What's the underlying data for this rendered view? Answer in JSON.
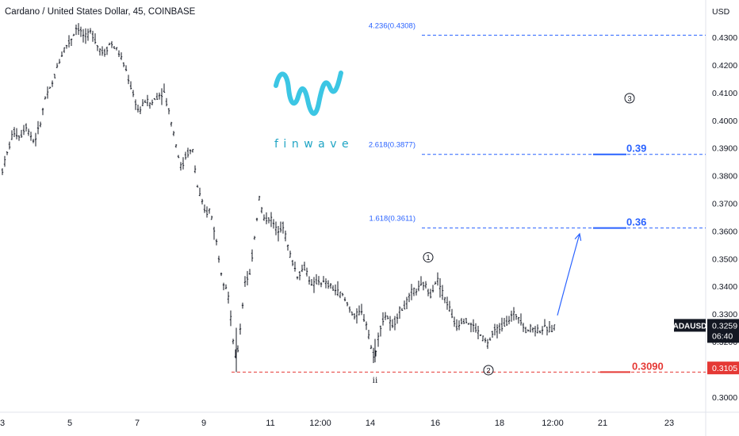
{
  "header": {
    "title": "Cardano / United States Dollar, 45, COINBASE"
  },
  "logo": {
    "text": "finwave",
    "color": "#1fa4c4"
  },
  "chart_data": {
    "type": "candlestick",
    "symbol": "ADAUSD",
    "currency": "USD",
    "ylim": [
      0.2945,
      0.4435
    ],
    "y_ticks": [
      "0.3000",
      "0.3100",
      "0.3200",
      "0.3300",
      "0.3400",
      "0.3500",
      "0.3600",
      "0.3700",
      "0.3800",
      "0.3900",
      "0.4000",
      "0.4100",
      "0.4200",
      "0.4300"
    ],
    "x_ticks": [
      "3",
      "5",
      "7",
      "9",
      "11",
      "12:00",
      "14",
      "16",
      "18",
      "12:00",
      "21",
      "23"
    ],
    "x_tick_index": [
      0,
      85,
      170,
      254,
      338,
      401,
      464,
      546,
      627,
      694,
      757,
      841
    ],
    "candle_count": 240,
    "anchor_points": [
      [
        0,
        0.382
      ],
      [
        6,
        0.388
      ],
      [
        14,
        0.396
      ],
      [
        22,
        0.394
      ],
      [
        30,
        0.398
      ],
      [
        40,
        0.392
      ],
      [
        48,
        0.399
      ],
      [
        54,
        0.408
      ],
      [
        62,
        0.412
      ],
      [
        70,
        0.42
      ],
      [
        78,
        0.426
      ],
      [
        86,
        0.429
      ],
      [
        94,
        0.434
      ],
      [
        104,
        0.43
      ],
      [
        112,
        0.432
      ],
      [
        120,
        0.427
      ],
      [
        128,
        0.424
      ],
      [
        136,
        0.428
      ],
      [
        146,
        0.425
      ],
      [
        156,
        0.418
      ],
      [
        164,
        0.41
      ],
      [
        172,
        0.403
      ],
      [
        180,
        0.407
      ],
      [
        188,
        0.406
      ],
      [
        196,
        0.409
      ],
      [
        204,
        0.41
      ],
      [
        212,
        0.401
      ],
      [
        220,
        0.39
      ],
      [
        226,
        0.382
      ],
      [
        232,
        0.388
      ],
      [
        240,
        0.389
      ],
      [
        246,
        0.376
      ],
      [
        252,
        0.37
      ],
      [
        256,
        0.366
      ],
      [
        262,
        0.368
      ],
      [
        270,
        0.356
      ],
      [
        278,
        0.342
      ],
      [
        284,
        0.339
      ],
      [
        290,
        0.323
      ],
      [
        295,
        0.3118
      ],
      [
        300,
        0.325
      ],
      [
        306,
        0.342
      ],
      [
        312,
        0.344
      ],
      [
        318,
        0.358
      ],
      [
        324,
        0.372
      ],
      [
        330,
        0.364
      ],
      [
        338,
        0.365
      ],
      [
        346,
        0.36
      ],
      [
        354,
        0.362
      ],
      [
        362,
        0.352
      ],
      [
        372,
        0.344
      ],
      [
        382,
        0.347
      ],
      [
        390,
        0.34
      ],
      [
        398,
        0.342
      ],
      [
        408,
        0.341
      ],
      [
        418,
        0.339
      ],
      [
        428,
        0.337
      ],
      [
        436,
        0.333
      ],
      [
        444,
        0.329
      ],
      [
        452,
        0.331
      ],
      [
        460,
        0.326
      ],
      [
        466,
        0.316
      ],
      [
        470,
        0.3145
      ],
      [
        476,
        0.325
      ],
      [
        484,
        0.33
      ],
      [
        492,
        0.325
      ],
      [
        500,
        0.331
      ],
      [
        508,
        0.333
      ],
      [
        516,
        0.338
      ],
      [
        524,
        0.339
      ],
      [
        532,
        0.341
      ],
      [
        540,
        0.337
      ],
      [
        548,
        0.343
      ],
      [
        556,
        0.337
      ],
      [
        564,
        0.332
      ],
      [
        572,
        0.325
      ],
      [
        580,
        0.328
      ],
      [
        588,
        0.327
      ],
      [
        596,
        0.325
      ],
      [
        604,
        0.322
      ],
      [
        612,
        0.319
      ],
      [
        620,
        0.324
      ],
      [
        628,
        0.325
      ],
      [
        636,
        0.327
      ],
      [
        644,
        0.33
      ],
      [
        652,
        0.329
      ],
      [
        660,
        0.324
      ],
      [
        668,
        0.325
      ],
      [
        676,
        0.324
      ],
      [
        684,
        0.325
      ],
      [
        692,
        0.324
      ],
      [
        698,
        0.3259
      ]
    ],
    "fib_levels": [
      {
        "label": "4.236(0.4308)",
        "value": 0.4308
      },
      {
        "label": "2.618(0.3877)",
        "value": 0.3877
      },
      {
        "label": "1.618(0.3611)",
        "value": 0.3611
      }
    ],
    "targets": [
      {
        "label": "0.39",
        "value": 0.3877,
        "color": "#2962ff"
      },
      {
        "label": "0.36",
        "value": 0.3611,
        "color": "#2962ff"
      },
      {
        "label": "0.3090",
        "value": 0.309,
        "color": "#e53935"
      }
    ],
    "support_line": {
      "value": 0.309,
      "color": "#e53935"
    },
    "wave_labels": [
      {
        "label": "1",
        "circled": true,
        "x_index": 537,
        "value": 0.3505
      },
      {
        "label": "2",
        "circled": true,
        "x_index": 613,
        "value": 0.3097
      },
      {
        "label": "3",
        "circled": true,
        "x_index": 791,
        "value": 0.408
      },
      {
        "label": "ii",
        "circled": false,
        "x_index": 470,
        "value": 0.3063
      }
    ],
    "projection_arrow": {
      "from": [
        700,
        0.3295
      ],
      "to": [
        728,
        0.359
      ],
      "color": "#2962ff"
    },
    "last_price": {
      "symbol": "ADAUSD",
      "value": "0.3259",
      "countdown": "06:40",
      "numeric": 0.3259
    },
    "red_tag": {
      "value": "0.3105",
      "numeric": 0.3105,
      "color": "#e53935"
    }
  }
}
